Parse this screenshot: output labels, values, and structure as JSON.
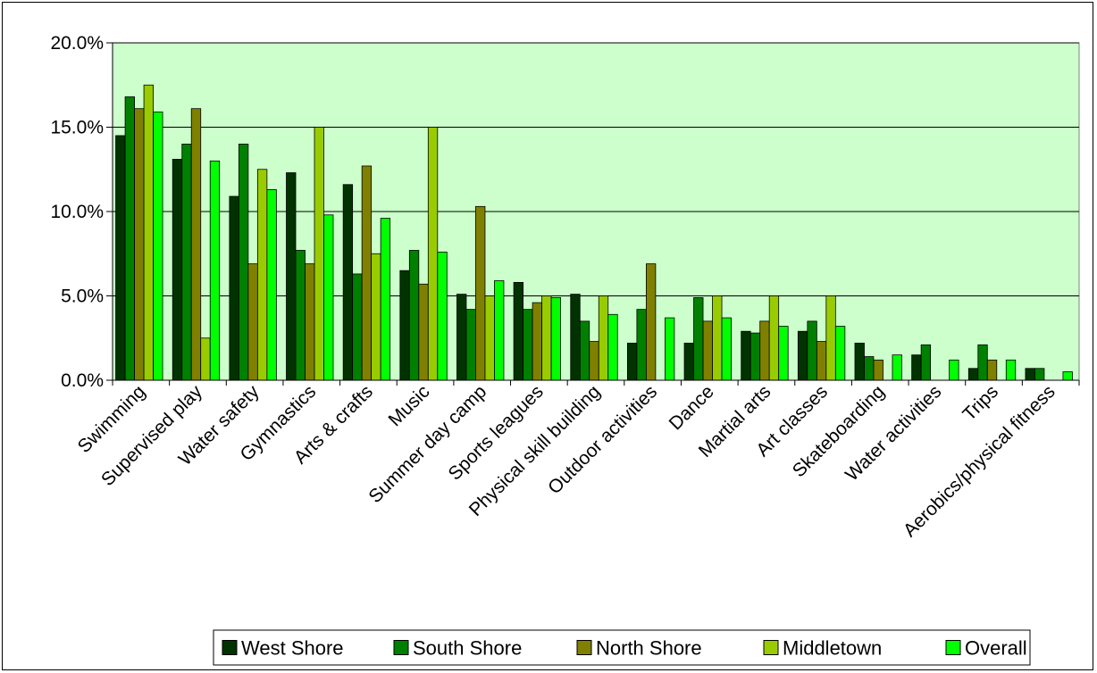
{
  "chart_data": {
    "type": "bar",
    "title": "",
    "xlabel": "",
    "ylabel": "",
    "ylim": [
      0,
      0.2
    ],
    "yticks": [
      {
        "value": 0.0,
        "label": "0.0%"
      },
      {
        "value": 0.05,
        "label": "5.0%"
      },
      {
        "value": 0.1,
        "label": "10.0%"
      },
      {
        "value": 0.15,
        "label": "15.0%"
      },
      {
        "value": 0.2,
        "label": "20.0%"
      }
    ],
    "grid": true,
    "legend_position": "bottom",
    "plot_background": "#ccffcc",
    "categories": [
      "Swimming",
      "Supervised play",
      "Water safety",
      "Gymnastics",
      "Arts & crafts",
      "Music",
      "Summer day camp",
      "Sports leagues",
      "Physical skill building",
      "Outdoor activities",
      "Dance",
      "Martial arts",
      "Art classes",
      "Skateboarding",
      "Water activities",
      "Trips",
      "Aerobics/physical fitness"
    ],
    "series": [
      {
        "name": "West Shore",
        "color": "#003300",
        "values": [
          0.145,
          0.131,
          0.109,
          0.123,
          0.116,
          0.065,
          0.051,
          0.058,
          0.051,
          0.022,
          0.022,
          0.029,
          0.029,
          0.022,
          0.015,
          0.007,
          0.007
        ]
      },
      {
        "name": "South Shore",
        "color": "#008000",
        "values": [
          0.168,
          0.14,
          0.14,
          0.077,
          0.063,
          0.077,
          0.042,
          0.042,
          0.035,
          0.042,
          0.049,
          0.028,
          0.035,
          0.014,
          0.021,
          0.021,
          0.007
        ]
      },
      {
        "name": "North Shore",
        "color": "#808000",
        "values": [
          0.161,
          0.161,
          0.069,
          0.069,
          0.127,
          0.057,
          0.103,
          0.046,
          0.023,
          0.069,
          0.035,
          0.035,
          0.023,
          0.012,
          0.0,
          0.012,
          0.0
        ]
      },
      {
        "name": "Middletown",
        "color": "#99cc00",
        "values": [
          0.175,
          0.025,
          0.125,
          0.15,
          0.075,
          0.15,
          0.05,
          0.05,
          0.05,
          0.0,
          0.05,
          0.05,
          0.05,
          0.0,
          0.0,
          0.0,
          0.0
        ]
      },
      {
        "name": "Overall",
        "color": "#00ff00",
        "values": [
          0.159,
          0.13,
          0.113,
          0.098,
          0.096,
          0.076,
          0.059,
          0.049,
          0.039,
          0.037,
          0.037,
          0.032,
          0.032,
          0.015,
          0.012,
          0.012,
          0.005
        ]
      }
    ]
  }
}
